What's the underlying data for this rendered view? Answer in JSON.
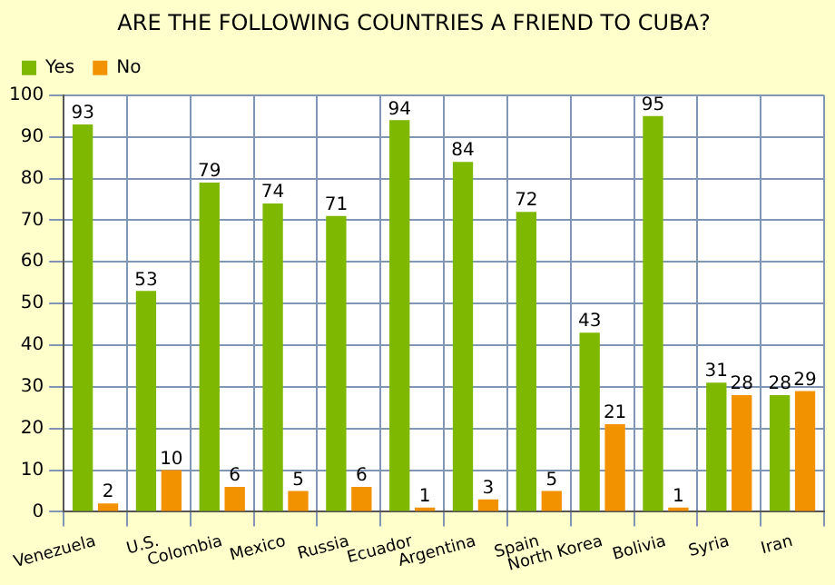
{
  "chart_data": {
    "type": "bar",
    "title": "ARE THE FOLLOWING COUNTRIES A FRIEND TO CUBA?",
    "categories": [
      "Venezuela",
      "U.S.",
      "Colombia",
      "Mexico",
      "Russia",
      "Ecuador",
      "Argentina",
      "Spain",
      "North Korea",
      "Bolivia",
      "Syria",
      "Iran"
    ],
    "series": [
      {
        "name": "Yes",
        "color": "#7fb800",
        "values": [
          93,
          53,
          79,
          74,
          71,
          94,
          84,
          72,
          43,
          95,
          31,
          28
        ]
      },
      {
        "name": "No",
        "color": "#f39200",
        "values": [
          2,
          10,
          6,
          5,
          6,
          1,
          3,
          5,
          21,
          1,
          28,
          29
        ]
      }
    ],
    "ylim": [
      0,
      100
    ],
    "yticks": [
      0,
      10,
      20,
      30,
      40,
      50,
      60,
      70,
      80,
      90,
      100
    ],
    "grid": true,
    "legend": "top left",
    "data_labels": true
  }
}
